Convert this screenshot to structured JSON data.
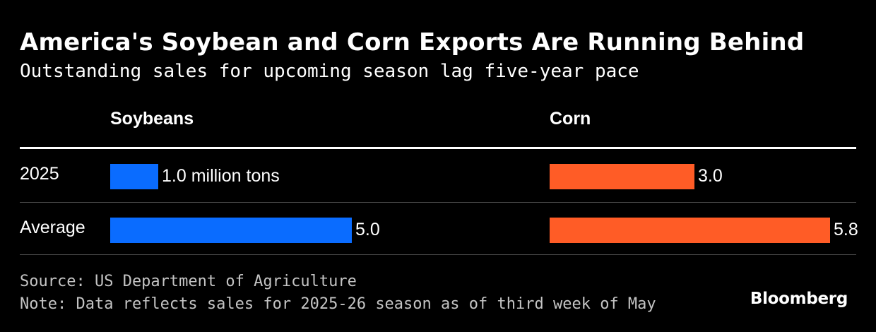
{
  "chart_data": {
    "type": "bar",
    "title": "America's Soybean and Corn Exports Are Running Behind",
    "subtitle": "Outstanding sales for upcoming season lag five-year pace",
    "categories": [
      "2025",
      "Average"
    ],
    "unit_label": "million tons",
    "panels": [
      {
        "name": "Soybeans",
        "color": "#0a6cff",
        "values": [
          1.0,
          5.0
        ],
        "labels": [
          "1.0 million tons",
          "5.0"
        ]
      },
      {
        "name": "Corn",
        "color": "#ff5c26",
        "values": [
          3.0,
          5.8
        ],
        "labels": [
          "3.0",
          "5.8"
        ]
      }
    ],
    "xlim": [
      0,
      7.2
    ],
    "grid": false,
    "legend": "none"
  },
  "footer": {
    "source": "Source: US Department of Agriculture",
    "note": "Note: Data reflects sales for 2025-26 season as of third week of May",
    "logo": "Bloomberg"
  }
}
